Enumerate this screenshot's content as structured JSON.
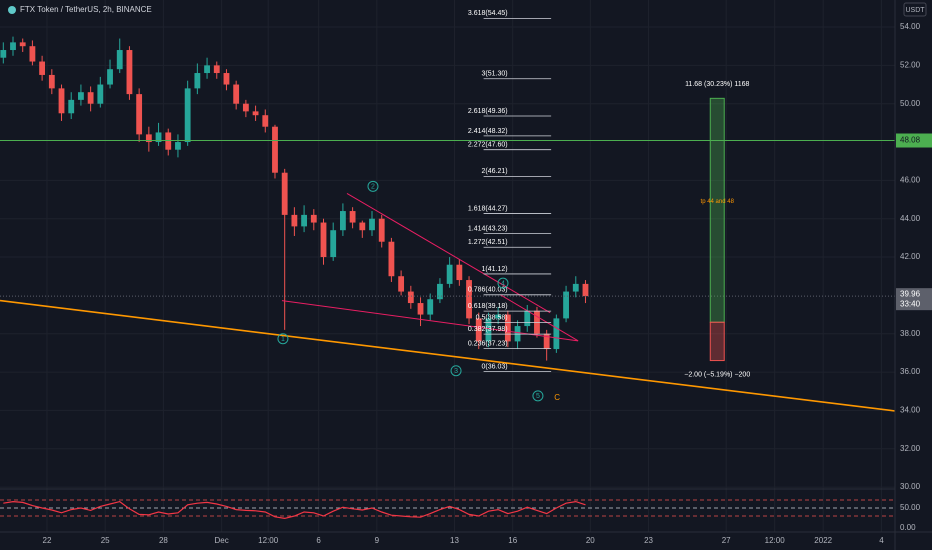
{
  "chart_data": {
    "type": "candlestick",
    "title": "FTX Token / TetherUS, 2h, BINANCE",
    "currency": "USDT",
    "xlim": [
      -2.42,
      43.7
    ],
    "xticks": [
      {
        "value": 0,
        "label": "22"
      },
      {
        "value": 3,
        "label": "25"
      },
      {
        "value": 6,
        "label": "28"
      },
      {
        "value": 9,
        "label": "Dec"
      },
      {
        "value": 11.4,
        "label": "12:00"
      },
      {
        "value": 14,
        "label": "6"
      },
      {
        "value": 17,
        "label": "9"
      },
      {
        "value": 21,
        "label": "13"
      },
      {
        "value": 24,
        "label": "16"
      },
      {
        "value": 28,
        "label": "20"
      },
      {
        "value": 31,
        "label": "23"
      },
      {
        "value": 35,
        "label": "27"
      },
      {
        "value": 37.5,
        "label": "12:00"
      },
      {
        "value": 40,
        "label": "2022"
      },
      {
        "value": 43,
        "label": "4"
      }
    ],
    "ylim": [
      29.9,
      55.41
    ],
    "yticks": [
      {
        "value": 54,
        "label": "54.00"
      },
      {
        "value": 52,
        "label": "52.00"
      },
      {
        "value": 50,
        "label": "50.00"
      },
      {
        "value": 46,
        "label": "46.00"
      },
      {
        "value": 44,
        "label": "44.00"
      },
      {
        "value": 42,
        "label": "42.00"
      },
      {
        "value": 38,
        "label": "38.00"
      },
      {
        "value": 36,
        "label": "36.00"
      },
      {
        "value": 34,
        "label": "34.00"
      },
      {
        "value": 32,
        "label": "32.00"
      },
      {
        "value": 30,
        "label": "30.00"
      }
    ],
    "grid": true,
    "up_color": "#26a69a",
    "down_color": "#ef5350",
    "x": [
      -2.25,
      -1.75,
      -1.25,
      -0.75,
      -0.25,
      0.25,
      0.75,
      1.25,
      1.75,
      2.25,
      2.75,
      3.25,
      3.75,
      4.25,
      4.75,
      5.25,
      5.75,
      6.25,
      6.75,
      7.25,
      7.75,
      8.25,
      8.75,
      9.25,
      9.75,
      10.25,
      10.75,
      11.25,
      11.75,
      12.25,
      12.75,
      13.25,
      13.75,
      14.25,
      14.75,
      15.25,
      15.75,
      16.25,
      16.75,
      17.25,
      17.75,
      18.25,
      18.75,
      19.25,
      19.75,
      20.25,
      20.75,
      21.25,
      21.75,
      22.25,
      22.75,
      23.25,
      23.75,
      24.25,
      24.75,
      25.25,
      25.75,
      26.25,
      26.75,
      27.25,
      27.75
    ],
    "open": [
      52.4,
      52.8,
      53.2,
      53.0,
      52.2,
      51.5,
      50.8,
      49.5,
      50.2,
      50.6,
      50.0,
      51.0,
      51.8,
      52.8,
      50.5,
      48.4,
      48.0,
      48.5,
      47.6,
      48.0,
      50.8,
      51.6,
      52.0,
      51.6,
      51.0,
      50.0,
      49.6,
      49.4,
      48.8,
      46.4,
      44.2,
      43.6,
      44.2,
      43.8,
      42.0,
      43.4,
      44.4,
      43.8,
      43.4,
      44.0,
      42.8,
      41.0,
      40.2,
      39.6,
      39.0,
      39.8,
      40.6,
      41.6,
      40.8,
      38.8,
      37.6,
      38.8,
      39.0,
      37.6,
      38.4,
      39.2,
      38.0,
      37.2,
      38.8,
      40.2,
      40.6
    ],
    "high": [
      53.2,
      53.5,
      53.4,
      53.3,
      52.5,
      51.8,
      51.0,
      50.6,
      51.0,
      50.9,
      51.4,
      52.3,
      53.4,
      53.0,
      50.8,
      48.8,
      49.0,
      48.7,
      48.4,
      51.2,
      52.1,
      52.4,
      52.2,
      51.8,
      51.2,
      50.2,
      49.9,
      49.7,
      48.9,
      46.6,
      44.6,
      44.7,
      44.5,
      44.0,
      43.8,
      44.8,
      44.6,
      43.9,
      44.4,
      44.2,
      43.0,
      41.3,
      40.5,
      39.9,
      40.1,
      40.9,
      42.0,
      41.9,
      41.0,
      39.1,
      39.1,
      39.4,
      39.2,
      38.7,
      39.5,
      39.4,
      38.2,
      39.0,
      40.5,
      41.0,
      40.8
    ],
    "low": [
      52.1,
      52.5,
      52.7,
      52.0,
      51.2,
      50.5,
      49.1,
      49.2,
      49.9,
      49.6,
      49.8,
      50.8,
      51.6,
      50.2,
      48.0,
      47.5,
      47.8,
      47.3,
      47.2,
      47.8,
      50.5,
      51.3,
      51.3,
      50.7,
      49.7,
      49.3,
      49.1,
      48.5,
      46.1,
      38.2,
      43.1,
      43.3,
      43.4,
      41.6,
      41.8,
      43.1,
      43.5,
      43.0,
      43.1,
      42.5,
      40.7,
      40.0,
      39.3,
      38.4,
      38.7,
      39.6,
      40.4,
      40.5,
      38.5,
      37.2,
      37.3,
      38.5,
      37.3,
      37.2,
      38.1,
      37.8,
      36.6,
      37.0,
      38.6,
      39.9,
      39.6
    ],
    "close": [
      52.8,
      53.2,
      53.0,
      52.2,
      51.5,
      50.8,
      49.5,
      50.2,
      50.6,
      50.0,
      51.0,
      51.8,
      52.8,
      50.5,
      48.4,
      48.0,
      48.5,
      47.6,
      48.0,
      50.8,
      51.6,
      52.0,
      51.6,
      51.0,
      50.0,
      49.6,
      49.4,
      48.8,
      46.4,
      44.2,
      43.6,
      44.2,
      43.8,
      42.0,
      43.4,
      44.4,
      43.8,
      43.4,
      44.0,
      42.8,
      41.0,
      40.2,
      39.6,
      39.0,
      39.8,
      40.6,
      41.6,
      40.8,
      38.8,
      37.6,
      38.8,
      39.0,
      37.6,
      38.4,
      39.2,
      38.0,
      37.2,
      38.8,
      40.2,
      40.6,
      39.96
    ],
    "last_price": {
      "value": 39.96,
      "label": "39.96",
      "countdown": "33:40"
    },
    "horizontal_line": {
      "value": 48.08,
      "label": "48.08",
      "color": "#4caf50"
    },
    "rsi": {
      "color": "#f23645",
      "y2lim": [
        0,
        100
      ],
      "y2ticks": [
        {
          "value": 50,
          "label": "50.00"
        },
        {
          "value": 0,
          "label": "0.00"
        }
      ],
      "levels": [
        70,
        50,
        30
      ],
      "values": [
        62,
        66,
        64,
        56,
        50,
        45,
        38,
        46,
        50,
        44,
        54,
        60,
        66,
        48,
        34,
        33,
        40,
        35,
        38,
        58,
        62,
        64,
        60,
        54,
        46,
        44,
        43,
        40,
        28,
        24,
        30,
        40,
        38,
        30,
        42,
        52,
        48,
        45,
        50,
        40,
        32,
        30,
        28,
        27,
        36,
        46,
        54,
        46,
        34,
        30,
        42,
        46,
        36,
        42,
        52,
        44,
        36,
        50,
        62,
        66,
        58
      ]
    },
    "fib_levels": [
      {
        "value": 54.45,
        "label": "3.618(54.45)"
      },
      {
        "value": 51.3,
        "label": "3(51.30)"
      },
      {
        "value": 49.36,
        "label": "2.618(49.36)"
      },
      {
        "value": 48.32,
        "label": "2.414(48.32)"
      },
      {
        "value": 47.6,
        "label": "2.272(47.60)"
      },
      {
        "value": 46.21,
        "label": "2(46.21)"
      },
      {
        "value": 44.27,
        "label": "1.618(44.27)"
      },
      {
        "value": 43.23,
        "label": "1.414(43.23)"
      },
      {
        "value": 42.51,
        "label": "1.272(42.51)"
      },
      {
        "value": 41.12,
        "label": "1(41.12)"
      },
      {
        "value": 40.03,
        "label": "0.786(40.03)"
      },
      {
        "value": 39.18,
        "label": "0.618(39.18)"
      },
      {
        "value": 38.58,
        "label": "0.5(38.58)"
      },
      {
        "value": 37.98,
        "label": "0.382(37.98)"
      },
      {
        "value": 37.23,
        "label": "0.236(37.23)"
      },
      {
        "value": 36.03,
        "label": "0(36.03)"
      }
    ],
    "fib_x": [
      22.5,
      25.98
    ],
    "trendlines": [
      {
        "color": "#ff9800",
        "x": [
          -2.42,
          43.7
        ],
        "y": [
          39.73,
          33.97
        ]
      },
      {
        "color": "#e91e63",
        "x": [
          15.46,
          25.93
        ],
        "y": [
          45.32,
          39.1
        ]
      },
      {
        "color": "#e91e63",
        "x": [
          12.11,
          27.37
        ],
        "y": [
          39.73,
          37.63
        ]
      },
      {
        "color": "#e91e63",
        "x": [
          23.35,
          27.37
        ],
        "y": [
          40.04,
          37.63
        ]
      }
    ],
    "position": {
      "x": [
        34.18,
        34.9
      ],
      "target": 50.28,
      "entry": 38.6,
      "stop": 36.6,
      "target_label": "11.68 (30.23%) 1168",
      "stop_label": "−2.00 (−5.19%) −200",
      "note": "tp 44 and 48"
    },
    "waves": [
      {
        "label": "1",
        "x": 12.16,
        "y": 37.74
      },
      {
        "label": "2",
        "x": 16.8,
        "y": 45.69
      },
      {
        "label": "3",
        "x": 21.08,
        "y": 36.07
      },
      {
        "label": "4",
        "x": 23.5,
        "y": 40.64
      },
      {
        "label": "5",
        "x": 25.3,
        "y": 34.76
      }
    ],
    "wave_c": {
      "label": "C",
      "x": 26.29,
      "y": 34.66
    }
  }
}
